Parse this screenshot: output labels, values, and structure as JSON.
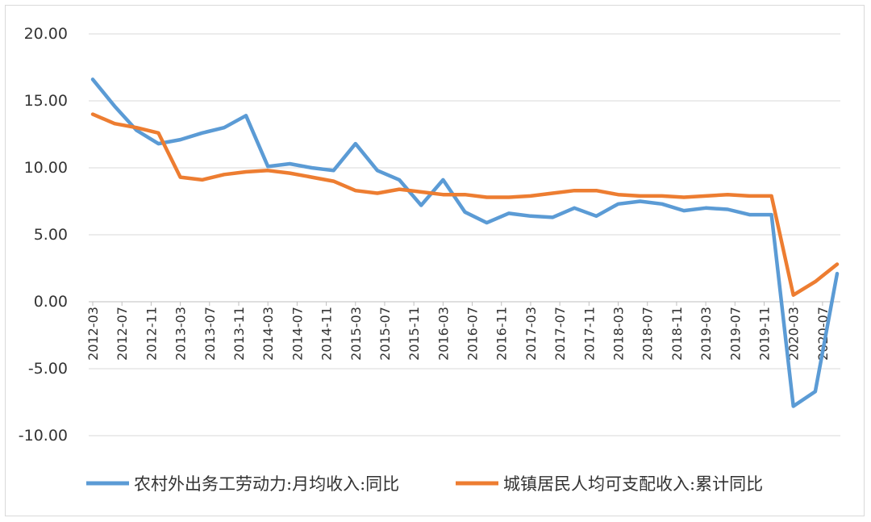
{
  "chart_data": {
    "type": "line",
    "title": "",
    "xlabel": "",
    "ylabel": "",
    "ylim": [
      -10,
      20
    ],
    "y_ticks": [
      "20.00",
      "15.00",
      "10.00",
      "5.00",
      "0.00",
      "-5.00",
      "-10.00"
    ],
    "y_tick_values": [
      20,
      15,
      10,
      5,
      0,
      -5,
      -10
    ],
    "grid": "horizontal",
    "legend_position": "bottom",
    "x_tick_labels": [
      "2012-03",
      "2012-07",
      "2012-11",
      "2013-03",
      "2013-07",
      "2013-11",
      "2014-03",
      "2014-07",
      "2014-11",
      "2015-03",
      "2015-07",
      "2015-11",
      "2016-03",
      "2016-07",
      "2016-11",
      "2017-03",
      "2017-07",
      "2017-11",
      "2018-03",
      "2018-07",
      "2018-11",
      "2019-03",
      "2019-07",
      "2019-11",
      "2020-03",
      "2020-07"
    ],
    "x": [
      "2012-03",
      "2012-06",
      "2012-09",
      "2012-12",
      "2013-03",
      "2013-06",
      "2013-09",
      "2013-12",
      "2014-03",
      "2014-06",
      "2014-09",
      "2014-12",
      "2015-03",
      "2015-06",
      "2015-09",
      "2015-12",
      "2016-03",
      "2016-06",
      "2016-09",
      "2016-12",
      "2017-03",
      "2017-06",
      "2017-09",
      "2017-12",
      "2018-03",
      "2018-06",
      "2018-09",
      "2018-12",
      "2019-03",
      "2019-06",
      "2019-09",
      "2019-12",
      "2020-03",
      "2020-06",
      "2020-09"
    ],
    "series": [
      {
        "name": "农村外出务工劳动力:月均收入:同比",
        "color": "#5b9bd5",
        "values": [
          16.6,
          14.6,
          12.8,
          11.8,
          12.1,
          12.6,
          13.0,
          13.9,
          10.1,
          10.3,
          10.0,
          9.8,
          11.8,
          9.8,
          9.1,
          7.2,
          9.1,
          6.7,
          5.9,
          6.6,
          6.4,
          6.3,
          7.0,
          6.4,
          7.3,
          7.5,
          7.3,
          6.8,
          7.0,
          6.9,
          6.5,
          6.5,
          -7.8,
          -6.7,
          2.1
        ]
      },
      {
        "name": "城镇居民人均可支配收入:累计同比",
        "color": "#ed7d31",
        "values": [
          14.0,
          13.3,
          13.0,
          12.6,
          9.3,
          9.1,
          9.5,
          9.7,
          9.8,
          9.6,
          9.3,
          9.0,
          8.3,
          8.1,
          8.4,
          8.2,
          8.0,
          8.0,
          7.8,
          7.8,
          7.9,
          8.1,
          8.3,
          8.3,
          8.0,
          7.9,
          7.9,
          7.8,
          7.9,
          8.0,
          7.9,
          7.9,
          0.5,
          1.5,
          2.8
        ]
      }
    ]
  }
}
